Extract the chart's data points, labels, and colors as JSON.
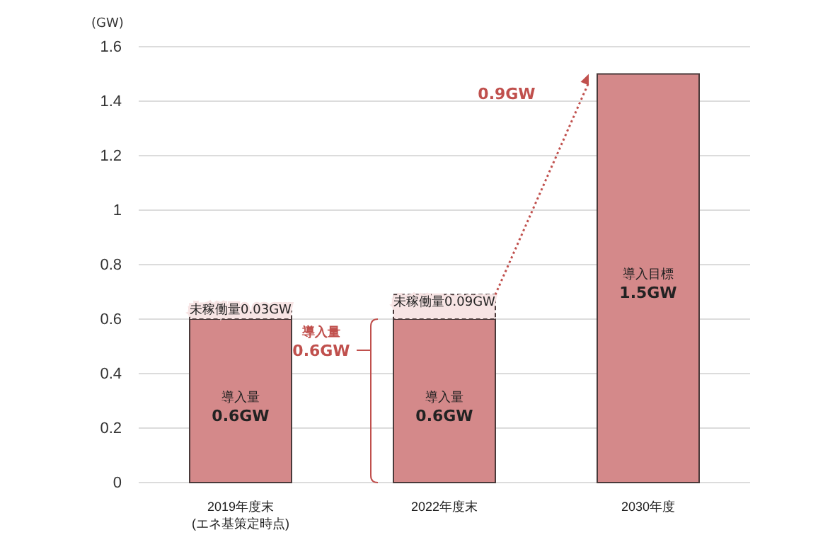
{
  "chart_data": {
    "type": "bar",
    "stacked": true,
    "ylabel": "(GW)",
    "categories": [
      "2019年度末\n(エネ基策定時点)",
      "2022年度末",
      "2030年度"
    ],
    "series": [
      {
        "name": null,
        "color": "#d4898a",
        "values": [
          0.6,
          0.6,
          1.5
        ],
        "value_labels": [
          "導入量\n0.6GW",
          "導入量\n0.6GW",
          "導入目標\n1.5GW"
        ]
      },
      {
        "name": null,
        "color": "#f7e4e4",
        "line_style": "dashed",
        "values": [
          0.03,
          0.09,
          null
        ],
        "value_labels": [
          "未稼働量0.03GW",
          "未稼働量0.09GW",
          null
        ]
      }
    ],
    "ylim": [
      0,
      1.6
    ],
    "yticks": [
      0,
      0.2,
      0.4,
      0.6,
      0.8,
      1,
      1.2,
      1.4,
      1.6
    ],
    "grid": "y",
    "annotations": [
      "導入量\n0.6GW",
      "0.9GW"
    ]
  }
}
